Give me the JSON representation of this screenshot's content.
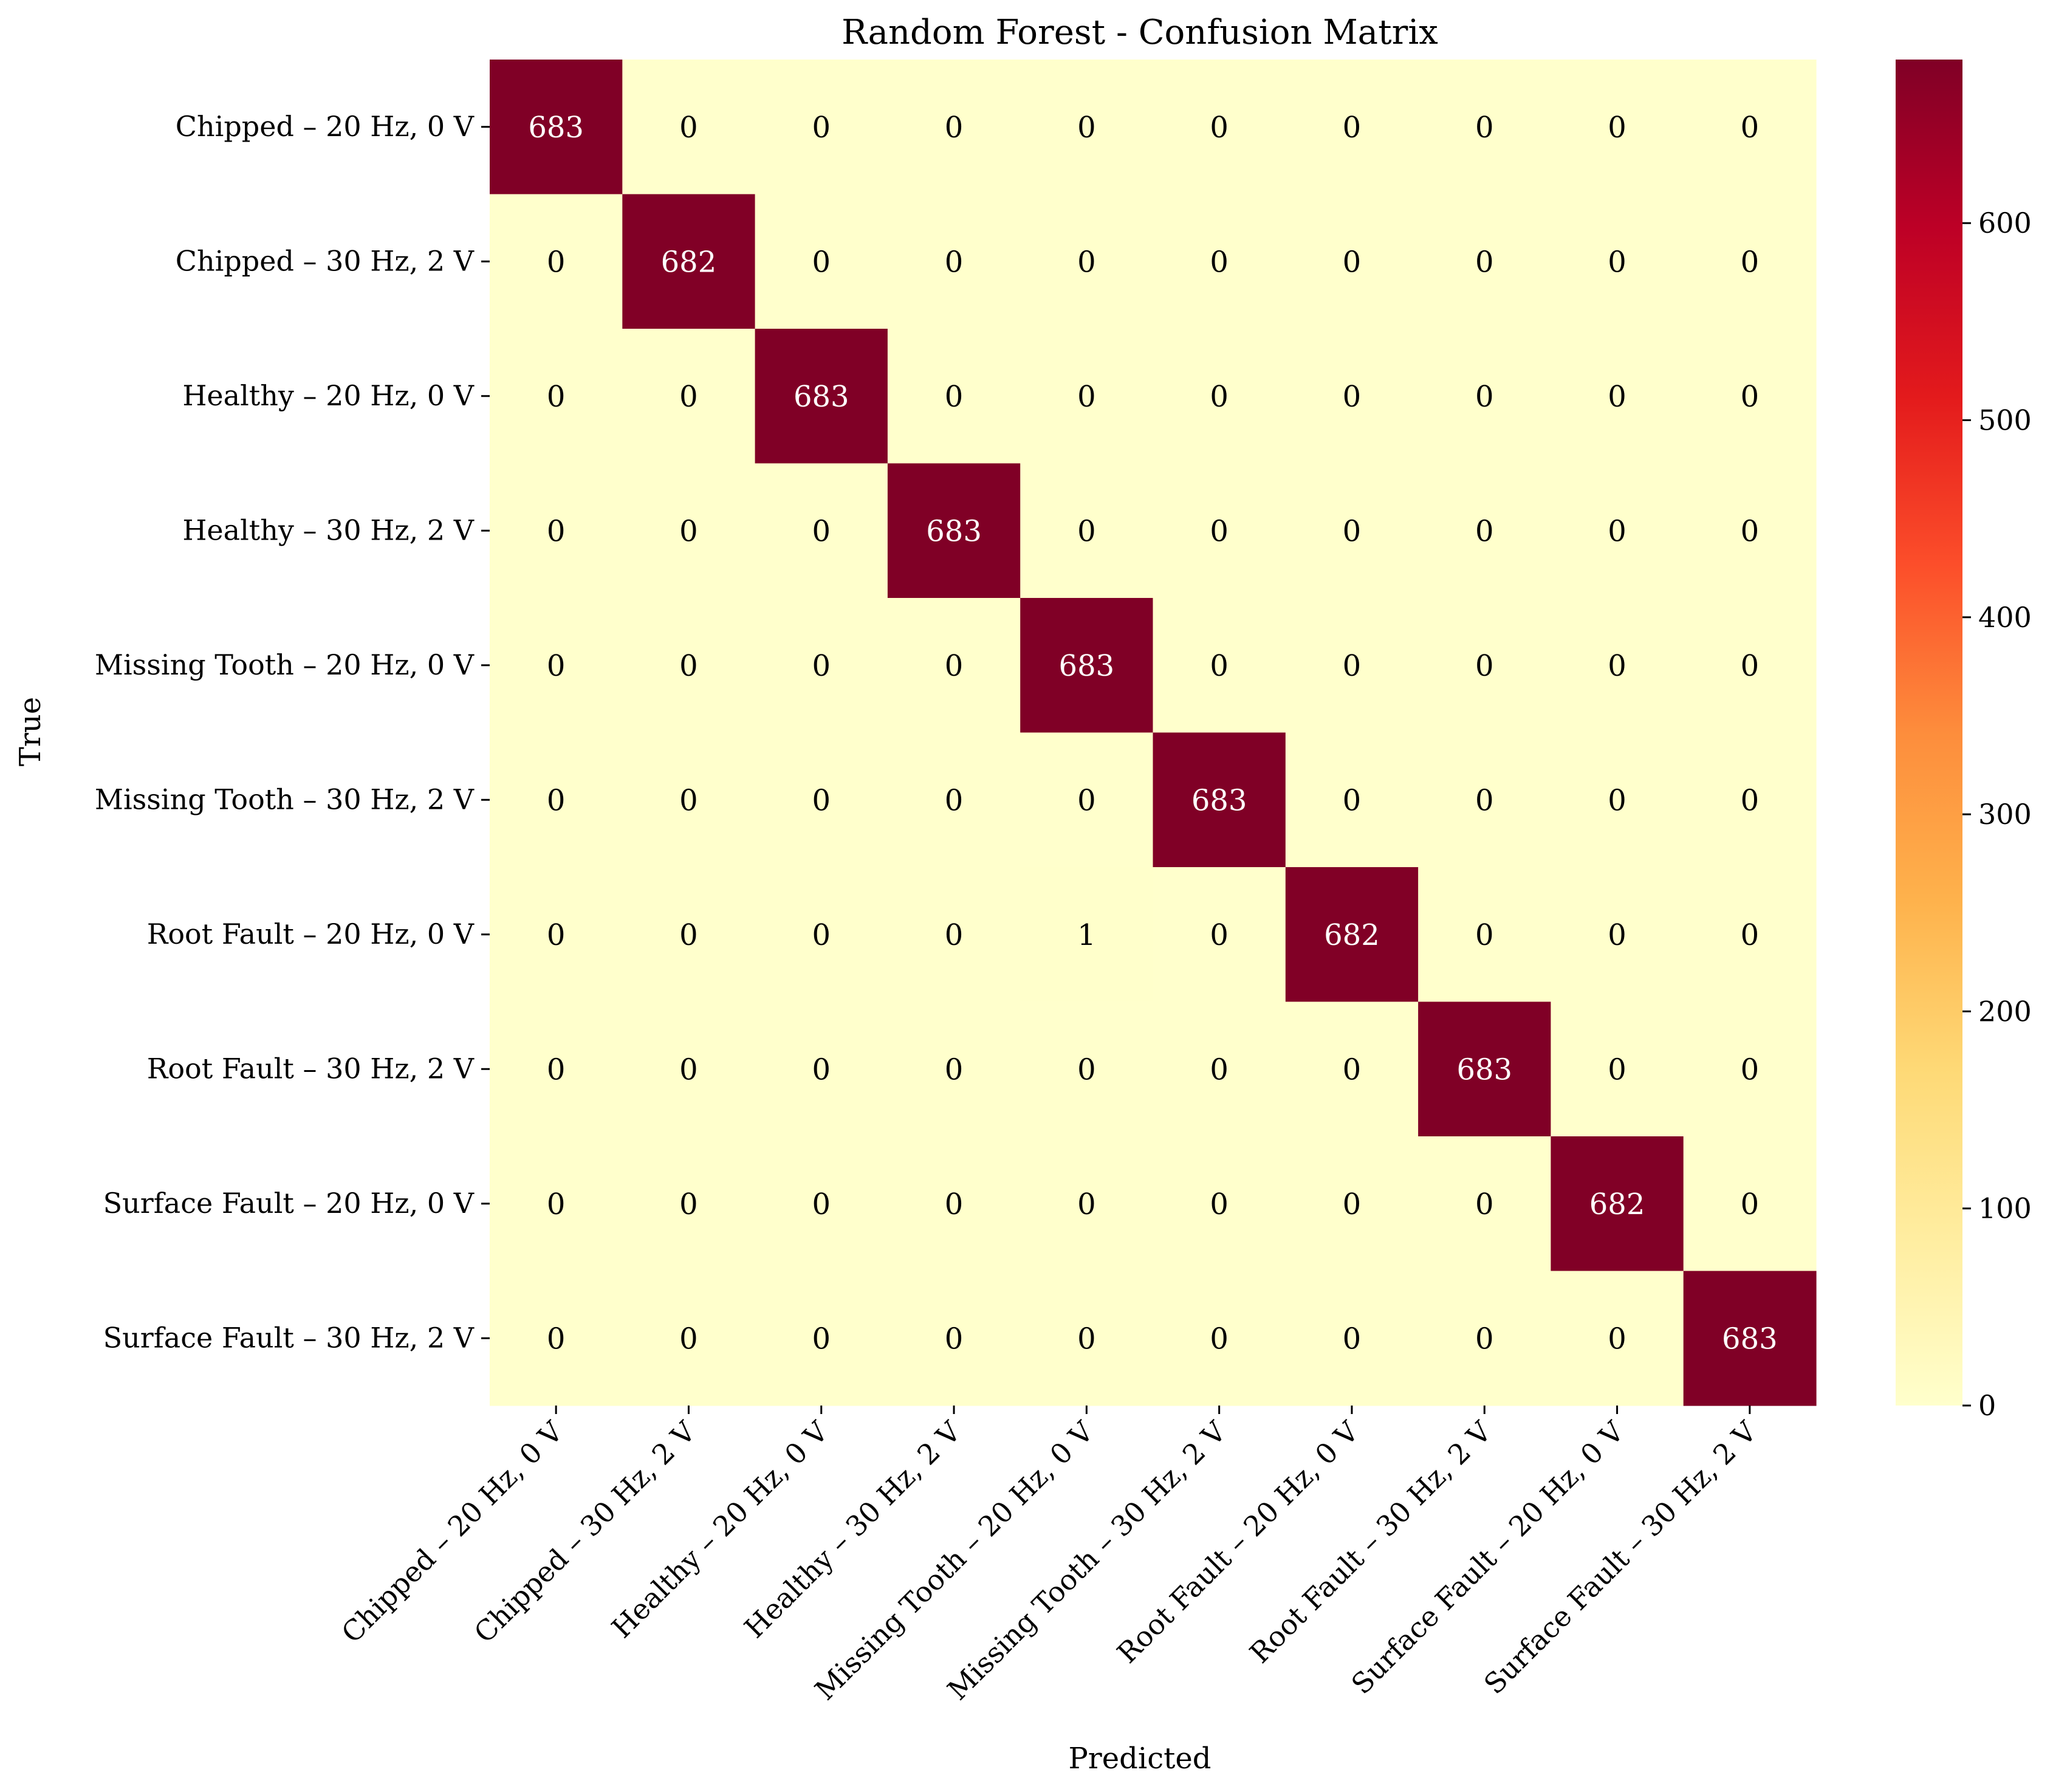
{
  "chart_data": {
    "type": "heatmap",
    "title": "Random Forest - Confusion Matrix",
    "xlabel": "Predicted",
    "ylabel": "True",
    "x_categories": [
      "Chipped – 20 Hz, 0 V",
      "Chipped – 30 Hz, 2 V",
      "Healthy – 20 Hz, 0 V",
      "Healthy – 30 Hz, 2 V",
      "Missing Tooth – 20 Hz, 0 V",
      "Missing Tooth – 30 Hz, 2 V",
      "Root Fault – 20 Hz, 0 V",
      "Root Fault – 30 Hz, 2 V",
      "Surface Fault – 20 Hz, 0 V",
      "Surface Fault – 30 Hz, 2 V"
    ],
    "y_categories": [
      "Chipped – 20 Hz, 0 V",
      "Chipped – 30 Hz, 2 V",
      "Healthy – 20 Hz, 0 V",
      "Healthy – 30 Hz, 2 V",
      "Missing Tooth – 20 Hz, 0 V",
      "Missing Tooth – 30 Hz, 2 V",
      "Root Fault – 20 Hz, 0 V",
      "Root Fault – 30 Hz, 2 V",
      "Surface Fault – 20 Hz, 0 V",
      "Surface Fault – 30 Hz, 2 V"
    ],
    "matrix": [
      [
        683,
        0,
        0,
        0,
        0,
        0,
        0,
        0,
        0,
        0
      ],
      [
        0,
        682,
        0,
        0,
        0,
        0,
        0,
        0,
        0,
        0
      ],
      [
        0,
        0,
        683,
        0,
        0,
        0,
        0,
        0,
        0,
        0
      ],
      [
        0,
        0,
        0,
        683,
        0,
        0,
        0,
        0,
        0,
        0
      ],
      [
        0,
        0,
        0,
        0,
        683,
        0,
        0,
        0,
        0,
        0
      ],
      [
        0,
        0,
        0,
        0,
        0,
        683,
        0,
        0,
        0,
        0
      ],
      [
        0,
        0,
        0,
        0,
        1,
        0,
        682,
        0,
        0,
        0
      ],
      [
        0,
        0,
        0,
        0,
        0,
        0,
        0,
        683,
        0,
        0
      ],
      [
        0,
        0,
        0,
        0,
        0,
        0,
        0,
        0,
        682,
        0
      ],
      [
        0,
        0,
        0,
        0,
        0,
        0,
        0,
        0,
        0,
        683
      ]
    ],
    "colorbar": {
      "range": [
        0,
        683
      ],
      "ticks": [
        0,
        100,
        200,
        300,
        400,
        500,
        600
      ],
      "colormap": "YlOrRd",
      "colors": [
        "#ffffcc",
        "#ffeda0",
        "#fed976",
        "#feb24c",
        "#fd8d3c",
        "#fc4e2a",
        "#e31a1c",
        "#bd0026",
        "#800026"
      ]
    },
    "grid": false,
    "legend": "colorbar-right"
  }
}
